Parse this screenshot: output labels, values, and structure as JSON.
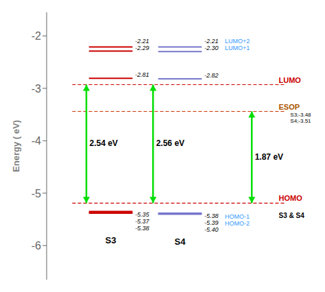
{
  "chart_data": {
    "type": "energy_levels",
    "ylabel": "Energy ( eV)",
    "ylim": [
      -6.65,
      -1.55
    ],
    "yticks": [
      -2,
      -3,
      -4,
      -5,
      -6
    ],
    "categories": [
      "LUMO+2",
      "LUMO+1",
      null,
      null,
      "HOMO-1",
      "HOMO-2"
    ],
    "category_color": "#3399ff",
    "series": [
      {
        "name": "S3",
        "color": "#cc0000",
        "values": [
          -2.21,
          -2.29,
          -2.81,
          -5.35,
          -5.37,
          -5.38
        ],
        "value_labels": [
          "-2.21",
          "-2.29",
          "-2.81",
          "-5.35",
          "-5.37",
          "-5.38"
        ]
      },
      {
        "name": "S4",
        "color": "#7777cc",
        "values": [
          -2.21,
          -2.3,
          -2.82,
          -5.38,
          -5.39,
          -5.4
        ],
        "value_labels": [
          "-2.21",
          "-2.30",
          "-2.82",
          "-5.38",
          "-5.39",
          "-5.40"
        ]
      }
    ],
    "data_labels": true,
    "reference_lines": [
      {
        "name": "LUMO",
        "value": -2.93,
        "color": "#cc0000",
        "label_color": "#cc0000",
        "line_style": "dashed"
      },
      {
        "name": "ESOP",
        "value": -3.44,
        "color": "#cc3300",
        "label_color": "#aa5500",
        "line_style": "dashed",
        "notes": [
          "S3;-3.48",
          "S4;-3.51"
        ]
      },
      {
        "name": "HOMO",
        "value": -5.19,
        "color": "#cc0000",
        "label_color": "#cc0000",
        "line_style": "dashed"
      }
    ],
    "gaps": [
      {
        "label": "2.54 eV",
        "from": -5.19,
        "to": -2.93
      },
      {
        "label": "2.56 eV",
        "from": -5.19,
        "to": -2.93
      },
      {
        "label": "1.87 eV",
        "from": -5.19,
        "to": -3.44
      }
    ],
    "gap_color": "#00dd00",
    "annotations": [
      "S3 & S4"
    ]
  }
}
